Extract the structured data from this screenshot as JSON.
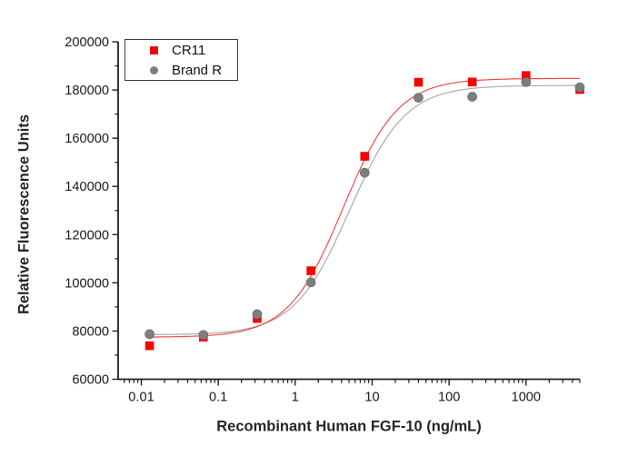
{
  "figure": {
    "background": "#ffffff",
    "axis_color": "#1f1f1f",
    "tick_label_color": "#1c1c1c"
  },
  "chart_data": {
    "type": "scatter",
    "title": "",
    "xlabel": "Recombinant Human FGF-10 (ng/mL)",
    "ylabel": "Relative Fluorescence Units",
    "x_scale": "log",
    "x_range": [
      0.005,
      5000
    ],
    "y_range": [
      60000,
      200000
    ],
    "x_tick_values": [
      0.01,
      0.1,
      1,
      10,
      100,
      1000
    ],
    "x_tick_labels": [
      "0.01",
      "0.1",
      "1",
      "10",
      "100",
      "1000"
    ],
    "y_tick_values": [
      60000,
      80000,
      100000,
      120000,
      140000,
      160000,
      180000,
      200000
    ],
    "y_tick_labels": [
      "60000",
      "80000",
      "100000",
      "120000",
      "140000",
      "160000",
      "180000",
      "200000"
    ],
    "y_minor_step": 10000,
    "grid": false,
    "legend_position": "top-left",
    "x": [
      0.0128,
      0.064,
      0.32,
      1.6,
      8,
      40,
      200,
      1000,
      5000
    ],
    "series": [
      {
        "name": "CR11",
        "marker": "square",
        "marker_color": "#f50400",
        "line_color": "#f24b4b",
        "values": [
          73900,
          77500,
          85200,
          105000,
          152500,
          183200,
          183300,
          186000,
          180200
        ],
        "fit_4pl": {
          "bottom": 77400,
          "top": 184800,
          "ec50": 4.2,
          "hill": 1.22
        }
      },
      {
        "name": "Brand R",
        "marker": "circle",
        "marker_color": "#7e7e7e",
        "line_color": "#ababab",
        "values": [
          78700,
          78400,
          87000,
          100200,
          145700,
          176800,
          177200,
          183300,
          181100
        ],
        "fit_4pl": {
          "bottom": 78400,
          "top": 181900,
          "ec50": 5.1,
          "hill": 1.2
        }
      }
    ]
  }
}
